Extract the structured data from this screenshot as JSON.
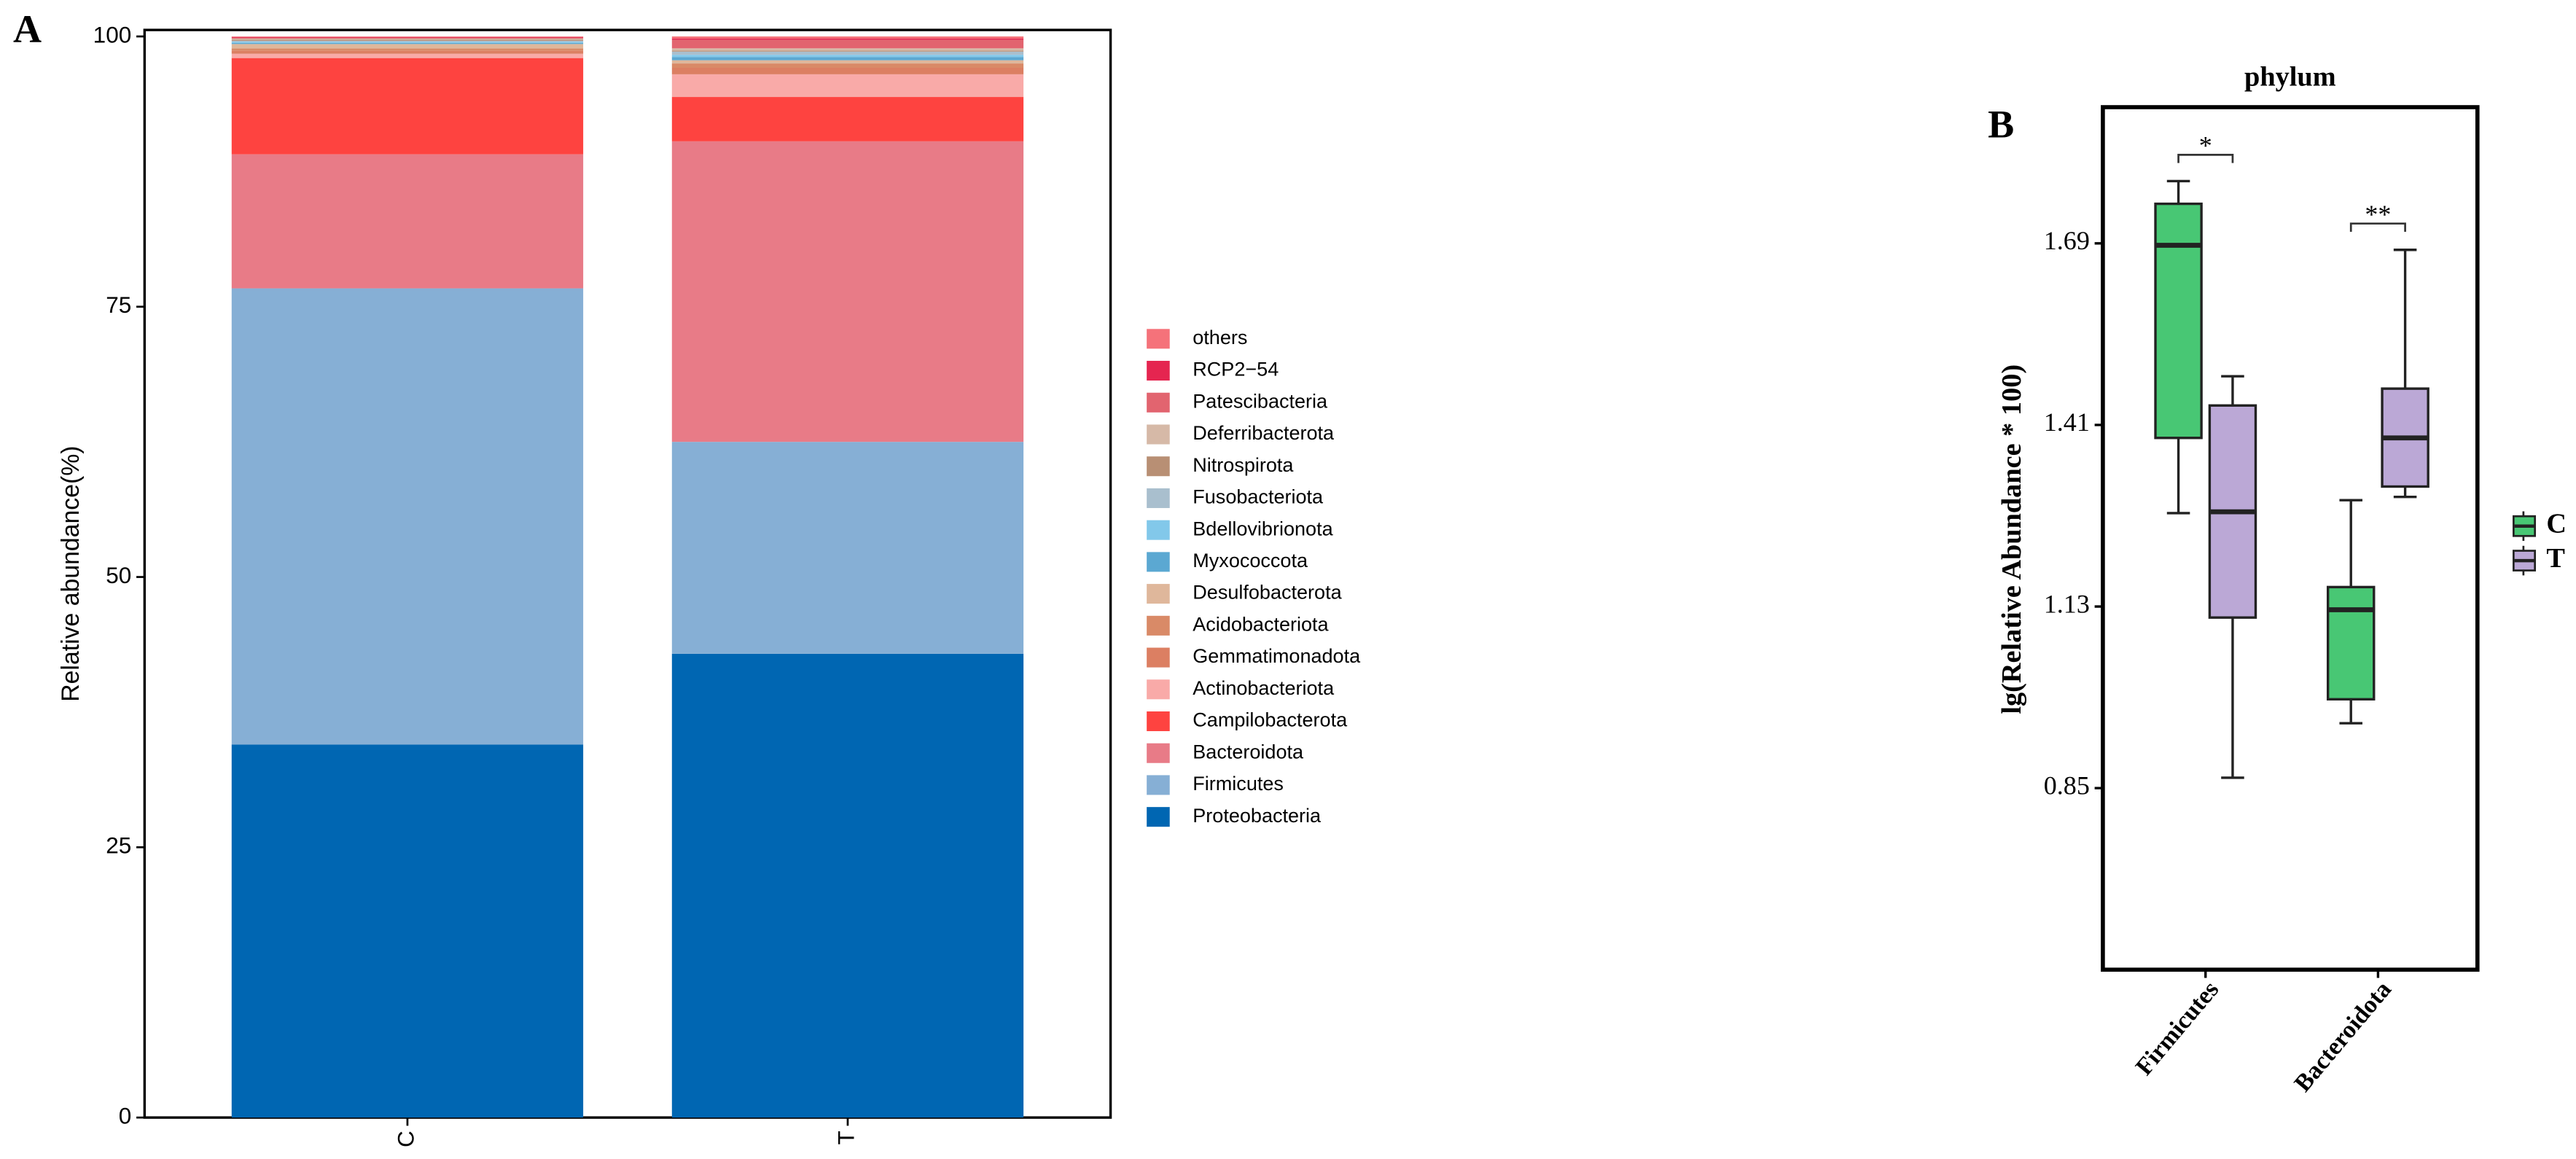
{
  "chart_data": [
    {
      "type": "stacked_bar",
      "panel_label": "A",
      "y_label": "Relative abundance(%)",
      "categories": [
        "C",
        "T"
      ],
      "ylim": [
        0,
        100.6
      ],
      "yticks": [
        0,
        25,
        50,
        75,
        100
      ],
      "series": [
        {
          "name": "Proteobacteria",
          "color": "#0066b2",
          "values": [
            34.5,
            42.9
          ]
        },
        {
          "name": "Firmicutes",
          "color": "#86afd5",
          "values": [
            42.2,
            19.6
          ]
        },
        {
          "name": "Bacteroidota",
          "color": "#e87b87",
          "values": [
            12.4,
            27.8
          ]
        },
        {
          "name": "Campilobacterota",
          "color": "#fe4340",
          "values": [
            8.9,
            4.1
          ]
        },
        {
          "name": "Actinobacteriota",
          "color": "#f9aaa8",
          "values": [
            0.4,
            2.1
          ]
        },
        {
          "name": "Gemmatimonadota",
          "color": "#dc7f62",
          "values": [
            0.3,
            0.6
          ]
        },
        {
          "name": "Acidobacteriota",
          "color": "#d98a67",
          "values": [
            0.2,
            0.4
          ]
        },
        {
          "name": "Desulfobacterota",
          "color": "#dfb79b",
          "values": [
            0.4,
            0.3
          ]
        },
        {
          "name": "Myxococcota",
          "color": "#5ba8d2",
          "values": [
            0.1,
            0.3
          ]
        },
        {
          "name": "Bdellovibrionota",
          "color": "#82c8ea",
          "values": [
            0.1,
            0.2
          ]
        },
        {
          "name": "Fusobacteriota",
          "color": "#a9bfce",
          "values": [
            0.1,
            0.3
          ]
        },
        {
          "name": "Nitrospirota",
          "color": "#b88f74",
          "values": [
            0.1,
            0.1
          ]
        },
        {
          "name": "Deferribacterota",
          "color": "#d6b9a7",
          "values": [
            0.1,
            0.2
          ]
        },
        {
          "name": "Patescibacteria",
          "color": "#e2646f",
          "values": [
            0.1,
            0.8
          ]
        },
        {
          "name": "RCP2−54",
          "color": "#e52550",
          "values": [
            0.05,
            0.1
          ]
        },
        {
          "name": "others",
          "color": "#f5727a",
          "values": [
            0.05,
            0.2
          ]
        }
      ]
    },
    {
      "type": "box",
      "panel_label": "B",
      "title": "phylum",
      "y_label": "lg(Relative Abundance * 100)",
      "categories": [
        "Firmicutes",
        "Bacteroidota"
      ],
      "annotations": [
        "*",
        "**"
      ],
      "ylim": [
        0.57,
        1.9
      ],
      "yticks": [
        0.85,
        1.13,
        1.41,
        1.69
      ],
      "series": [
        {
          "name": "C",
          "color": "#48c774",
          "min": [
            1.274,
            0.95
          ],
          "q1": [
            1.39,
            0.987
          ],
          "median": [
            1.687,
            1.125
          ],
          "q3": [
            1.751,
            1.16
          ],
          "max": [
            1.786,
            1.294
          ]
        },
        {
          "name": "T",
          "color": "#bba8d6",
          "min": [
            0.866,
            1.299
          ],
          "q1": [
            1.113,
            1.315
          ],
          "median": [
            1.276,
            1.39
          ],
          "q3": [
            1.44,
            1.466
          ],
          "max": [
            1.485,
            1.68
          ]
        }
      ]
    }
  ]
}
